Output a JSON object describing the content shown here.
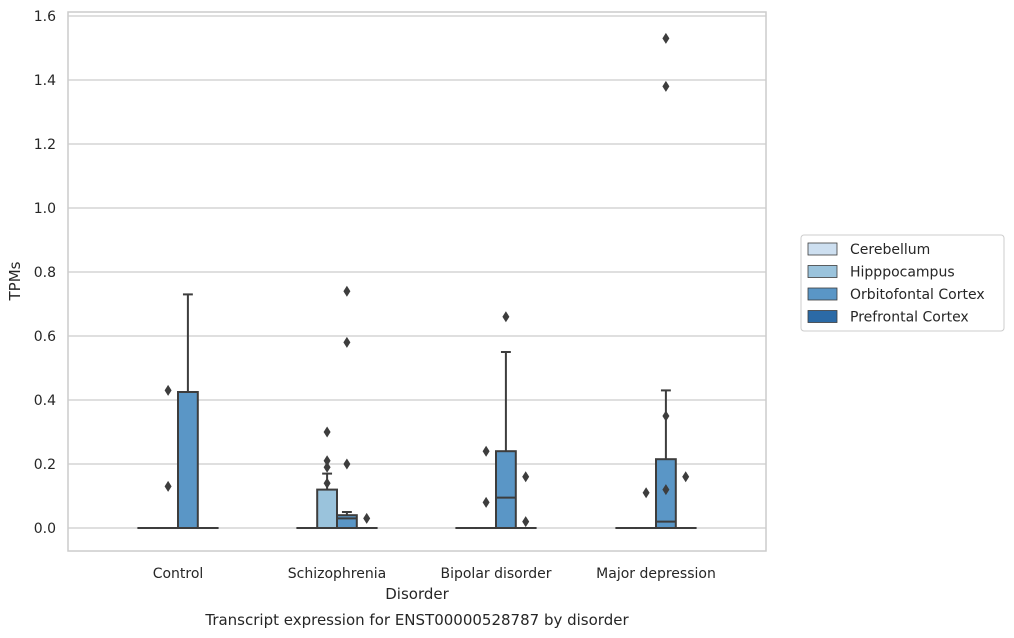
{
  "chart_data": {
    "type": "box",
    "title": "Transcript expression for ENST00000528787 by disorder",
    "xlabel": "Disorder",
    "ylabel": "TPMs",
    "ylim": [
      -0.07,
      1.61
    ],
    "yticks": [
      0.0,
      0.2,
      0.4,
      0.6,
      0.8,
      1.0,
      1.2,
      1.4,
      1.6
    ],
    "ytick_labels": [
      "0.0",
      "0.2",
      "0.4",
      "0.6",
      "0.8",
      "1.0",
      "1.2",
      "1.4",
      "1.6"
    ],
    "grid": true,
    "legend_position": "right",
    "categories": [
      "Control",
      "Schizophrenia",
      "Bipolar disorder",
      "Major depression"
    ],
    "series": [
      {
        "name": "Cerebellum",
        "color": "#cddff0",
        "boxes": [
          {
            "q1": 0,
            "median": 0,
            "q3": 0,
            "whisker_low": 0,
            "whisker_high": 0,
            "outliers": []
          },
          {
            "q1": 0,
            "median": 0,
            "q3": 0,
            "whisker_low": 0,
            "whisker_high": 0,
            "outliers": []
          },
          {
            "q1": 0,
            "median": 0,
            "q3": 0,
            "whisker_low": 0,
            "whisker_high": 0,
            "outliers": []
          },
          {
            "q1": 0,
            "median": 0,
            "q3": 0,
            "whisker_low": 0,
            "whisker_high": 0,
            "outliers": []
          }
        ]
      },
      {
        "name": "Hipppocampus",
        "color": "#9ac3dc",
        "boxes": [
          {
            "q1": 0,
            "median": 0,
            "q3": 0,
            "whisker_low": 0,
            "whisker_high": 0,
            "outliers": [
              0.13,
              0.43
            ]
          },
          {
            "q1": 0,
            "median": 0,
            "q3": 0.12,
            "whisker_low": 0,
            "whisker_high": 0.17,
            "outliers": [
              0.14,
              0.19,
              0.21,
              0.3
            ]
          },
          {
            "q1": 0,
            "median": 0,
            "q3": 0,
            "whisker_low": 0,
            "whisker_high": 0,
            "outliers": [
              0.08,
              0.24
            ]
          },
          {
            "q1": 0,
            "median": 0,
            "q3": 0,
            "whisker_low": 0,
            "whisker_high": 0,
            "outliers": [
              0.11
            ]
          }
        ]
      },
      {
        "name": "Orbitofontal Cortex",
        "color": "#5a96c6",
        "boxes": [
          {
            "q1": 0,
            "median": 0,
            "q3": 0.425,
            "whisker_low": 0,
            "whisker_high": 0.73,
            "outliers": []
          },
          {
            "q1": 0,
            "median": 0.03,
            "q3": 0.04,
            "whisker_low": 0,
            "whisker_high": 0.05,
            "outliers": [
              0.2,
              0.58,
              0.74
            ]
          },
          {
            "q1": 0,
            "median": 0.095,
            "q3": 0.24,
            "whisker_low": 0,
            "whisker_high": 0.55,
            "outliers": [
              0.66
            ]
          },
          {
            "q1": 0,
            "median": 0.02,
            "q3": 0.215,
            "whisker_low": 0,
            "whisker_high": 0.43,
            "outliers": [
              0.12,
              0.35,
              1.38,
              1.53
            ]
          }
        ]
      },
      {
        "name": "Prefrontal Cortex",
        "color": "#2b6aa6",
        "boxes": [
          {
            "q1": 0,
            "median": 0,
            "q3": 0,
            "whisker_low": 0,
            "whisker_high": 0,
            "outliers": []
          },
          {
            "q1": 0,
            "median": 0,
            "q3": 0,
            "whisker_low": 0,
            "whisker_high": 0,
            "outliers": [
              0.03
            ]
          },
          {
            "q1": 0,
            "median": 0,
            "q3": 0,
            "whisker_low": 0,
            "whisker_high": 0,
            "outliers": [
              0.02,
              0.16
            ]
          },
          {
            "q1": 0,
            "median": 0,
            "q3": 0,
            "whisker_low": 0,
            "whisker_high": 0,
            "outliers": [
              0.16
            ]
          }
        ]
      }
    ]
  }
}
